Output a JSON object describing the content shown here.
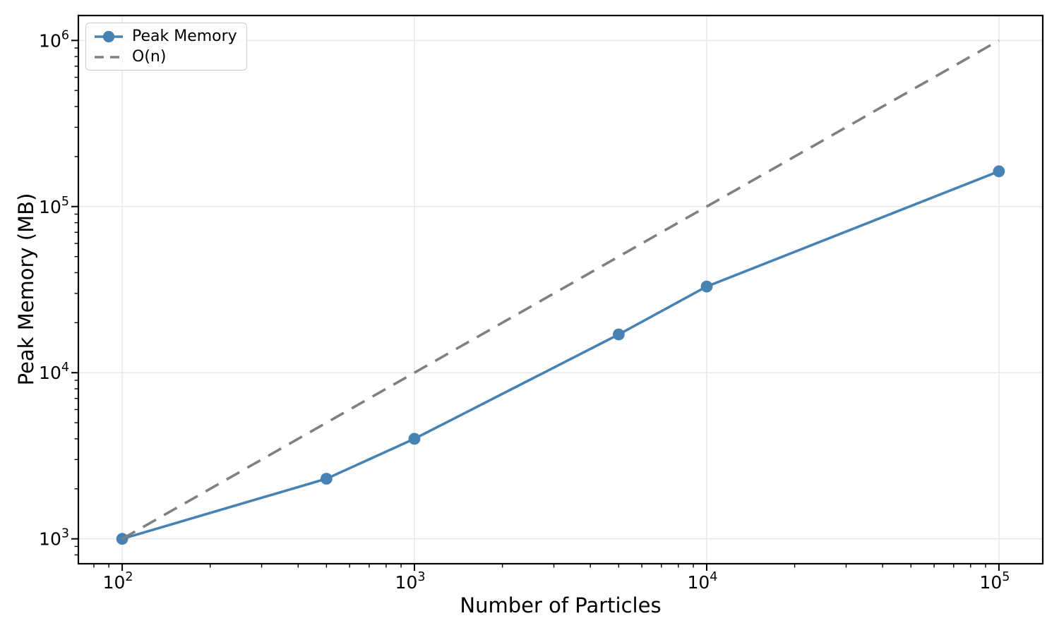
{
  "colors": {
    "series_blue": "#4682b4",
    "reference_gray": "#808080",
    "grid": "#e8e8e8",
    "spine": "#000000",
    "tick": "#000000",
    "legend_border": "#cccccc"
  },
  "chart_data": {
    "type": "line",
    "title": "",
    "xlabel": "Number of Particles",
    "ylabel": "Peak Memory (MB)",
    "x_scale": "log",
    "y_scale": "log",
    "xlim": [
      100,
      100000
    ],
    "ylim": [
      1000,
      1000000
    ],
    "x_tick_exponents": [
      2,
      3,
      4,
      5
    ],
    "y_tick_exponents": [
      3,
      4,
      5,
      6
    ],
    "grid": "major",
    "legend_position": "upper left",
    "series": [
      {
        "name": "Peak Memory",
        "x": [
          100,
          500,
          1000,
          5000,
          10000,
          100000
        ],
        "y": [
          1000,
          2300,
          4000,
          17000,
          33000,
          163000
        ],
        "color": "#4682b4",
        "line_style": "solid",
        "marker": "circle"
      },
      {
        "name": "O(n)",
        "x": [
          100,
          100000
        ],
        "y": [
          1000,
          1000000
        ],
        "color": "#808080",
        "line_style": "dashed",
        "marker": "none"
      }
    ]
  }
}
